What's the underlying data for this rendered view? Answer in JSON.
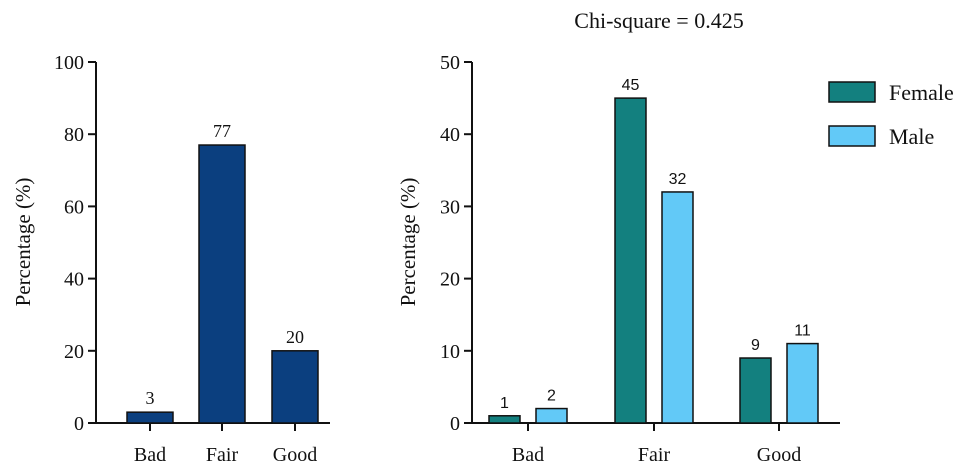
{
  "chart_data": [
    {
      "type": "bar",
      "title": "",
      "ylabel": "Percentage (%)",
      "xlabel": "",
      "ylim": [
        0,
        100
      ],
      "yticks": [
        0,
        20,
        40,
        60,
        80,
        100
      ],
      "categories": [
        "Bad",
        "Fair",
        "Good"
      ],
      "values": [
        3,
        77,
        20
      ],
      "data_labels": [
        "3",
        "77",
        "20"
      ],
      "color": "#0b3f7f",
      "legend": "none",
      "grid": false
    },
    {
      "type": "bar",
      "title": "Chi-square = 0.425",
      "ylabel": "Percentage (%)",
      "xlabel": "",
      "ylim": [
        0,
        50
      ],
      "yticks": [
        0,
        10,
        20,
        30,
        40,
        50
      ],
      "categories": [
        "Bad",
        "Fair",
        "Good"
      ],
      "series": [
        {
          "name": "Female",
          "values": [
            1,
            45,
            9
          ],
          "data_labels": [
            "1",
            "45",
            "9"
          ],
          "color": "#13807f"
        },
        {
          "name": "Male",
          "values": [
            2,
            32,
            11
          ],
          "data_labels": [
            "2",
            "32",
            "11"
          ],
          "color": "#62c9f7"
        }
      ],
      "legend": "top-right",
      "grid": false
    }
  ]
}
